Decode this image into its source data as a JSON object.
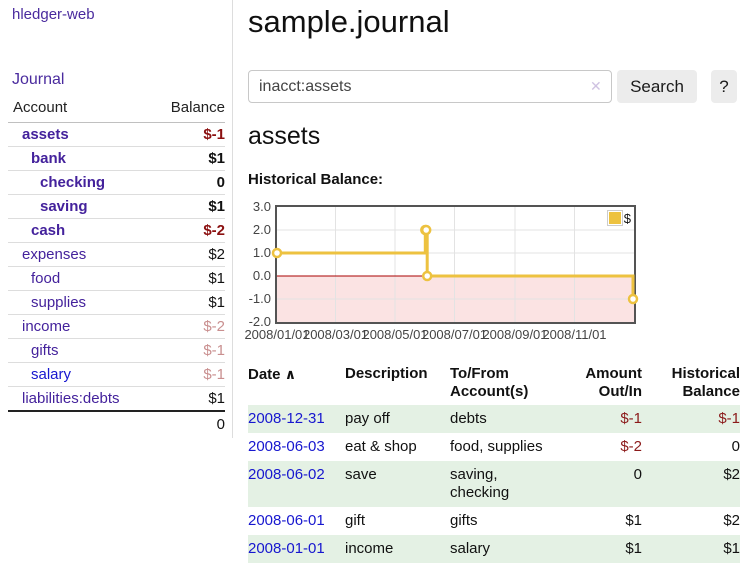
{
  "sidebar": {
    "brand": "hledger-web",
    "nav": {
      "journal": "Journal"
    },
    "accounts_table": {
      "col_account": "Account",
      "col_balance": "Balance",
      "rows": [
        {
          "name": "assets",
          "depth": 1,
          "bold": true,
          "balance": "$-1",
          "neg": "strong"
        },
        {
          "name": "bank",
          "depth": 2,
          "bold": true,
          "balance": "$1"
        },
        {
          "name": "checking",
          "depth": 3,
          "bold": true,
          "balance": "0"
        },
        {
          "name": "saving",
          "depth": 3,
          "bold": true,
          "balance": "$1"
        },
        {
          "name": "cash",
          "depth": 2,
          "bold": true,
          "balance": "$-2",
          "neg": "strong"
        },
        {
          "name": "expenses",
          "depth": 1,
          "bold": false,
          "balance": "$2"
        },
        {
          "name": "food",
          "depth": 2,
          "bold": false,
          "balance": "$1"
        },
        {
          "name": "supplies",
          "depth": 2,
          "bold": false,
          "balance": "$1"
        },
        {
          "name": "income",
          "depth": 1,
          "bold": false,
          "balance": "$-2",
          "neg": "muted"
        },
        {
          "name": "gifts",
          "depth": 2,
          "bold": false,
          "balance": "$-1",
          "neg": "muted"
        },
        {
          "name": "salary",
          "depth": 2,
          "bold": false,
          "balance": "$-1",
          "neg": "muted",
          "link_color": "blue"
        },
        {
          "name": "liabilities:debts",
          "depth": 1,
          "bold": false,
          "balance": "$1",
          "thick_bottom": true
        }
      ],
      "total": "0"
    }
  },
  "header": {
    "title": "sample.journal"
  },
  "search": {
    "value": "inacct:assets",
    "clear_icon": "✕",
    "button": "Search",
    "help_button": "?"
  },
  "account_page": {
    "heading": "assets",
    "chart_label": "Historical Balance:"
  },
  "chart_data": {
    "type": "line",
    "title": "Historical Balance",
    "step": true,
    "series": [
      {
        "name": "$",
        "color": "#EDC240",
        "points": [
          [
            "2008-01-01",
            1
          ],
          [
            "2008-06-01",
            2
          ],
          [
            "2008-06-02",
            2
          ],
          [
            "2008-06-03",
            0
          ],
          [
            "2008-12-31",
            -1
          ]
        ]
      }
    ],
    "x_start": "2008-01-01",
    "x_ticks": [
      "2008/01/01",
      "2008/03/01",
      "2008/05/01",
      "2008/07/01",
      "2008/09/01",
      "2008/11/01"
    ],
    "y_ticks": [
      "3.0",
      "2.0",
      "1.0",
      "0.0",
      "-1.0",
      "-2.0"
    ],
    "ylim": [
      -2,
      3
    ],
    "xlim_days": [
      0,
      366
    ],
    "grid": true,
    "grid_color": "#e3e3e3",
    "border_color": "#545454",
    "negative_fill": "#fbe3e3",
    "zero_line_color": "#aa0000",
    "legend": "$",
    "legend_position": "top-right"
  },
  "register": {
    "headers": {
      "date": "Date",
      "sort_icon": "∧",
      "description": "Description",
      "tofrom": "To/From Account(s)",
      "amount": "Amount Out/In",
      "balance": "Historical Balance"
    },
    "rows": [
      {
        "date": "2008-12-31",
        "description": "pay off",
        "accounts": "debts",
        "amount": "$-1",
        "balance": "$-1"
      },
      {
        "date": "2008-06-03",
        "description": "eat & shop",
        "accounts": "food, supplies",
        "amount": "$-2",
        "balance": "0"
      },
      {
        "date": "2008-06-02",
        "description": "save",
        "accounts": "saving,\nchecking",
        "amount": "0",
        "balance": "$2"
      },
      {
        "date": "2008-06-01",
        "description": "gift",
        "accounts": "gifts",
        "amount": "$1",
        "balance": "$2"
      },
      {
        "date": "2008-01-01",
        "description": "income",
        "accounts": "salary",
        "amount": "$1",
        "balance": "$1"
      }
    ]
  }
}
